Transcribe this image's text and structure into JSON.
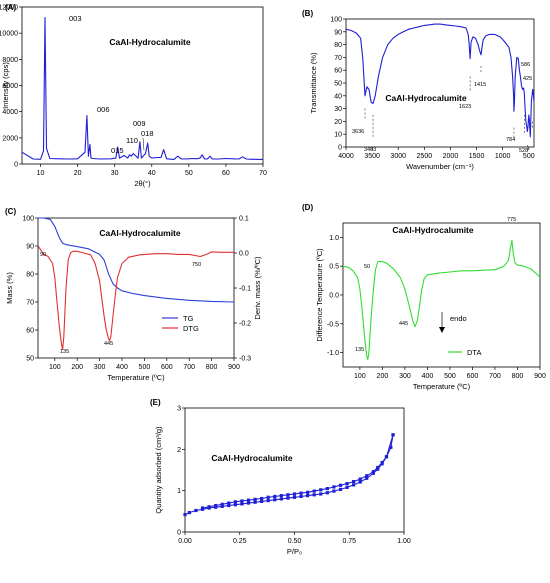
{
  "chart_data": [
    {
      "panel": "(A)",
      "type": "line",
      "title": "CaAl-Hydrocalumite",
      "xlabel": "2θ(°)",
      "ylabel": "Intensity (cps)",
      "xlim": [
        5,
        70
      ],
      "ylim": [
        0,
        12000
      ],
      "xticks": [
        10,
        20,
        30,
        40,
        50,
        60,
        70
      ],
      "yticks": [
        0,
        2000,
        4000,
        6000,
        8000,
        10000,
        12000
      ],
      "color": "#1f1fd6",
      "series": [
        {
          "x": [
            5,
            8,
            10,
            10.8,
            11.2,
            11.6,
            12.5,
            15,
            18,
            20,
            22,
            22.5,
            22.9,
            23.3,
            23.6,
            24,
            26,
            29,
            30.3,
            30.8,
            31.3,
            32.5,
            33.5,
            34,
            34.5,
            35,
            36.3,
            36.8,
            37.2,
            38.3,
            38.9,
            39.3,
            40,
            41.5,
            42.5,
            43.2,
            44,
            46,
            47,
            48,
            50,
            51,
            52,
            53,
            53.6,
            54.2,
            55,
            55.7,
            56.3,
            58,
            60,
            62,
            63.5,
            64.5,
            65.5,
            67,
            70
          ],
          "y": [
            900,
            380,
            360,
            1000,
            11200,
            1200,
            420,
            400,
            380,
            400,
            900,
            3700,
            600,
            1500,
            450,
            420,
            380,
            400,
            450,
            1300,
            450,
            650,
            450,
            700,
            600,
            800,
            450,
            1700,
            450,
            800,
            1600,
            600,
            450,
            500,
            500,
            1100,
            400,
            350,
            600,
            380,
            400,
            420,
            400,
            450,
            700,
            400,
            380,
            600,
            380,
            380,
            420,
            400,
            380,
            550,
            380,
            360,
            350
          ]
        }
      ],
      "annotations": [
        "003",
        "006",
        "015",
        "110",
        "009",
        "018"
      ]
    },
    {
      "panel": "(B)",
      "type": "line",
      "title": "CaAl-Hydrocalumite",
      "xlabel": "Wavenumber (cm⁻¹)",
      "ylabel": "Transmittance (%)",
      "xlim": [
        4000,
        400
      ],
      "ylim": [
        0,
        100
      ],
      "xticks": [
        4000,
        3500,
        3000,
        2500,
        2000,
        1500,
        1000,
        500
      ],
      "yticks": [
        0,
        10,
        20,
        30,
        40,
        50,
        60,
        70,
        80,
        90,
        100
      ],
      "color": "#1f1fd6",
      "series": [
        {
          "x": [
            4000,
            3900,
            3800,
            3720,
            3680,
            3636,
            3600,
            3560,
            3520,
            3483,
            3440,
            3380,
            3300,
            3200,
            3100,
            3000,
            2900,
            2800,
            2700,
            2600,
            2500,
            2400,
            2300,
            2200,
            2100,
            2000,
            1900,
            1800,
            1700,
            1660,
            1640,
            1623,
            1605,
            1570,
            1520,
            1470,
            1440,
            1415,
            1395,
            1370,
            1320,
            1250,
            1200,
            1150,
            1100,
            1050,
            1000,
            960,
            920,
            880,
            840,
            810,
            790,
            784,
            775,
            760,
            730,
            700,
            680,
            660,
            640,
            620,
            600,
            586,
            570,
            555,
            540,
            528,
            515,
            500,
            490,
            470,
            450,
            425,
            410,
            400
          ],
          "y": [
            92,
            91,
            89,
            85,
            70,
            40,
            47,
            45,
            35,
            34,
            40,
            55,
            70,
            80,
            85,
            88,
            90,
            92,
            93,
            94,
            95,
            95.5,
            96,
            96,
            95.5,
            95,
            94.5,
            94,
            93,
            88,
            80,
            69,
            82,
            86,
            85,
            80,
            75,
            72,
            78,
            84,
            87,
            88,
            88,
            88,
            87,
            86,
            84,
            82,
            80,
            78,
            70,
            55,
            40,
            28,
            35,
            55,
            70,
            69,
            60,
            55,
            48,
            45,
            46,
            42,
            30,
            20,
            16,
            12,
            16,
            25,
            22,
            8,
            36,
            45,
            40,
            35
          ]
        }
      ],
      "annotations": [
        "3636",
        "3483",
        "1623",
        "1415",
        "784",
        "586",
        "528",
        "425"
      ]
    },
    {
      "panel": "(C)",
      "type": "line",
      "title": "CaAl-Hydrocalumite",
      "xlabel": "Temperature (ºC)",
      "ylabel": "Mass (%)",
      "ylabel_right": "Deriv. mass (%/ºC)",
      "xlim": [
        25,
        900
      ],
      "ylim": [
        50,
        100
      ],
      "ylim_right": [
        -0.3,
        0.1
      ],
      "xticks": [
        100,
        200,
        300,
        400,
        500,
        600,
        700,
        800,
        900
      ],
      "yticks": [
        50,
        60,
        70,
        80,
        90,
        100
      ],
      "yticks_right": [
        0.1,
        0.0,
        -0.1,
        -0.2,
        -0.3
      ],
      "legend": "bottom-right",
      "series": [
        {
          "name": "TG",
          "color": "#2e3fd6",
          "x": [
            25,
            50,
            80,
            100,
            120,
            135,
            150,
            170,
            200,
            250,
            300,
            320,
            340,
            360,
            380,
            400,
            450,
            500,
            600,
            700,
            800,
            900
          ],
          "y": [
            100,
            100,
            99.5,
            97,
            93,
            91,
            90.5,
            90.2,
            89.8,
            89,
            87,
            85,
            80,
            76.5,
            75,
            74,
            73,
            72.3,
            71.3,
            70.6,
            70.2,
            70
          ]
        },
        {
          "name": "DTG",
          "color": "#e03030",
          "x": [
            25,
            50,
            70,
            90,
            100,
            110,
            120,
            130,
            135,
            140,
            150,
            160,
            170,
            180,
            200,
            230,
            260,
            280,
            300,
            310,
            320,
            330,
            340,
            345,
            350,
            360,
            370,
            380,
            400,
            430,
            480,
            550,
            600,
            650,
            700,
            750,
            780,
            800,
            850,
            900
          ],
          "y": [
            0.02,
            -0.003,
            -0.01,
            -0.03,
            -0.07,
            -0.14,
            -0.21,
            -0.26,
            -0.276,
            -0.24,
            -0.1,
            -0.02,
            0.0,
            0.005,
            0.005,
            0.0,
            -0.005,
            -0.03,
            -0.08,
            -0.13,
            -0.18,
            -0.22,
            -0.245,
            -0.25,
            -0.24,
            -0.18,
            -0.12,
            -0.07,
            -0.03,
            -0.012,
            -0.005,
            -0.002,
            -0.002,
            -0.004,
            -0.004,
            -0.01,
            -0.003,
            0.003,
            0.002,
            0.002
          ]
        }
      ],
      "annotations": [
        "90",
        "135",
        "445",
        "750"
      ]
    },
    {
      "panel": "(D)",
      "type": "line",
      "title": "CaAl-Hydrocalumite",
      "xlabel": "Temperature (ºC)",
      "ylabel": "Difference Temperature (ºC)",
      "xlim": [
        25,
        900
      ],
      "ylim": [
        -1.25,
        1.25
      ],
      "xticks": [
        100,
        200,
        300,
        400,
        500,
        600,
        700,
        800,
        900
      ],
      "yticks": [
        -1.0,
        -0.5,
        0.0,
        0.5,
        1.0
      ],
      "legend": "bottom-right",
      "annotation_endo": "endo",
      "series": [
        {
          "name": "DTA",
          "color": "#33dd33",
          "x": [
            25,
            50,
            70,
            90,
            100,
            110,
            120,
            130,
            135,
            140,
            150,
            160,
            170,
            180,
            200,
            220,
            250,
            280,
            300,
            320,
            335,
            345,
            355,
            365,
            375,
            385,
            400,
            450,
            500,
            550,
            600,
            650,
            700,
            740,
            760,
            768,
            775,
            782,
            790,
            800,
            830,
            860,
            890,
            900
          ],
          "y": [
            0.5,
            0.48,
            0.42,
            0.3,
            0.1,
            -0.25,
            -0.7,
            -1.05,
            -1.12,
            -1.0,
            -0.4,
            0.1,
            0.45,
            0.58,
            0.58,
            0.55,
            0.45,
            0.3,
            0.1,
            -0.2,
            -0.45,
            -0.55,
            -0.45,
            -0.2,
            0.1,
            0.28,
            0.35,
            0.38,
            0.4,
            0.42,
            0.42,
            0.43,
            0.44,
            0.5,
            0.6,
            0.8,
            0.95,
            0.7,
            0.55,
            0.52,
            0.5,
            0.45,
            0.35,
            0.3
          ]
        }
      ],
      "annotations": [
        "50",
        "135",
        "445",
        "775"
      ]
    },
    {
      "panel": "(E)",
      "type": "line",
      "title": "CaAl-Hydrocalumite",
      "xlabel": "P/P₀",
      "ylabel": "Quantity adsorbed (cm³/g)",
      "xlim": [
        0.0,
        1.0
      ],
      "ylim": [
        0,
        3
      ],
      "xticks": [
        0.0,
        0.25,
        0.5,
        0.75,
        1.0
      ],
      "yticks": [
        0,
        1,
        2,
        3
      ],
      "color": "#1f1fd6",
      "series": [
        {
          "x": [
            0.0,
            0.02,
            0.05,
            0.08,
            0.11,
            0.14,
            0.17,
            0.2,
            0.23,
            0.26,
            0.29,
            0.32,
            0.35,
            0.38,
            0.41,
            0.44,
            0.47,
            0.5,
            0.53,
            0.56,
            0.59,
            0.62,
            0.65,
            0.68,
            0.71,
            0.74,
            0.77,
            0.8,
            0.83,
            0.86,
            0.88,
            0.9,
            0.92,
            0.94,
            0.95
          ],
          "y": [
            0.42,
            0.47,
            0.52,
            0.55,
            0.58,
            0.6,
            0.62,
            0.64,
            0.66,
            0.68,
            0.7,
            0.72,
            0.74,
            0.76,
            0.78,
            0.8,
            0.82,
            0.84,
            0.86,
            0.88,
            0.9,
            0.92,
            0.95,
            0.99,
            1.03,
            1.08,
            1.14,
            1.21,
            1.3,
            1.42,
            1.52,
            1.65,
            1.82,
            2.05,
            2.35
          ]
        },
        {
          "x": [
            0.95,
            0.92,
            0.9,
            0.88,
            0.86,
            0.83,
            0.8,
            0.77,
            0.74,
            0.71,
            0.68,
            0.65,
            0.62,
            0.59,
            0.56,
            0.53,
            0.5,
            0.47,
            0.44,
            0.41,
            0.38,
            0.35,
            0.32,
            0.29,
            0.26,
            0.23,
            0.2,
            0.17,
            0.14,
            0.11,
            0.08
          ],
          "y": [
            2.35,
            1.82,
            1.68,
            1.56,
            1.46,
            1.36,
            1.28,
            1.22,
            1.17,
            1.13,
            1.09,
            1.05,
            1.02,
            0.99,
            0.96,
            0.94,
            0.92,
            0.9,
            0.88,
            0.86,
            0.84,
            0.81,
            0.79,
            0.77,
            0.75,
            0.73,
            0.7,
            0.67,
            0.64,
            0.61,
            0.58
          ]
        }
      ]
    }
  ]
}
